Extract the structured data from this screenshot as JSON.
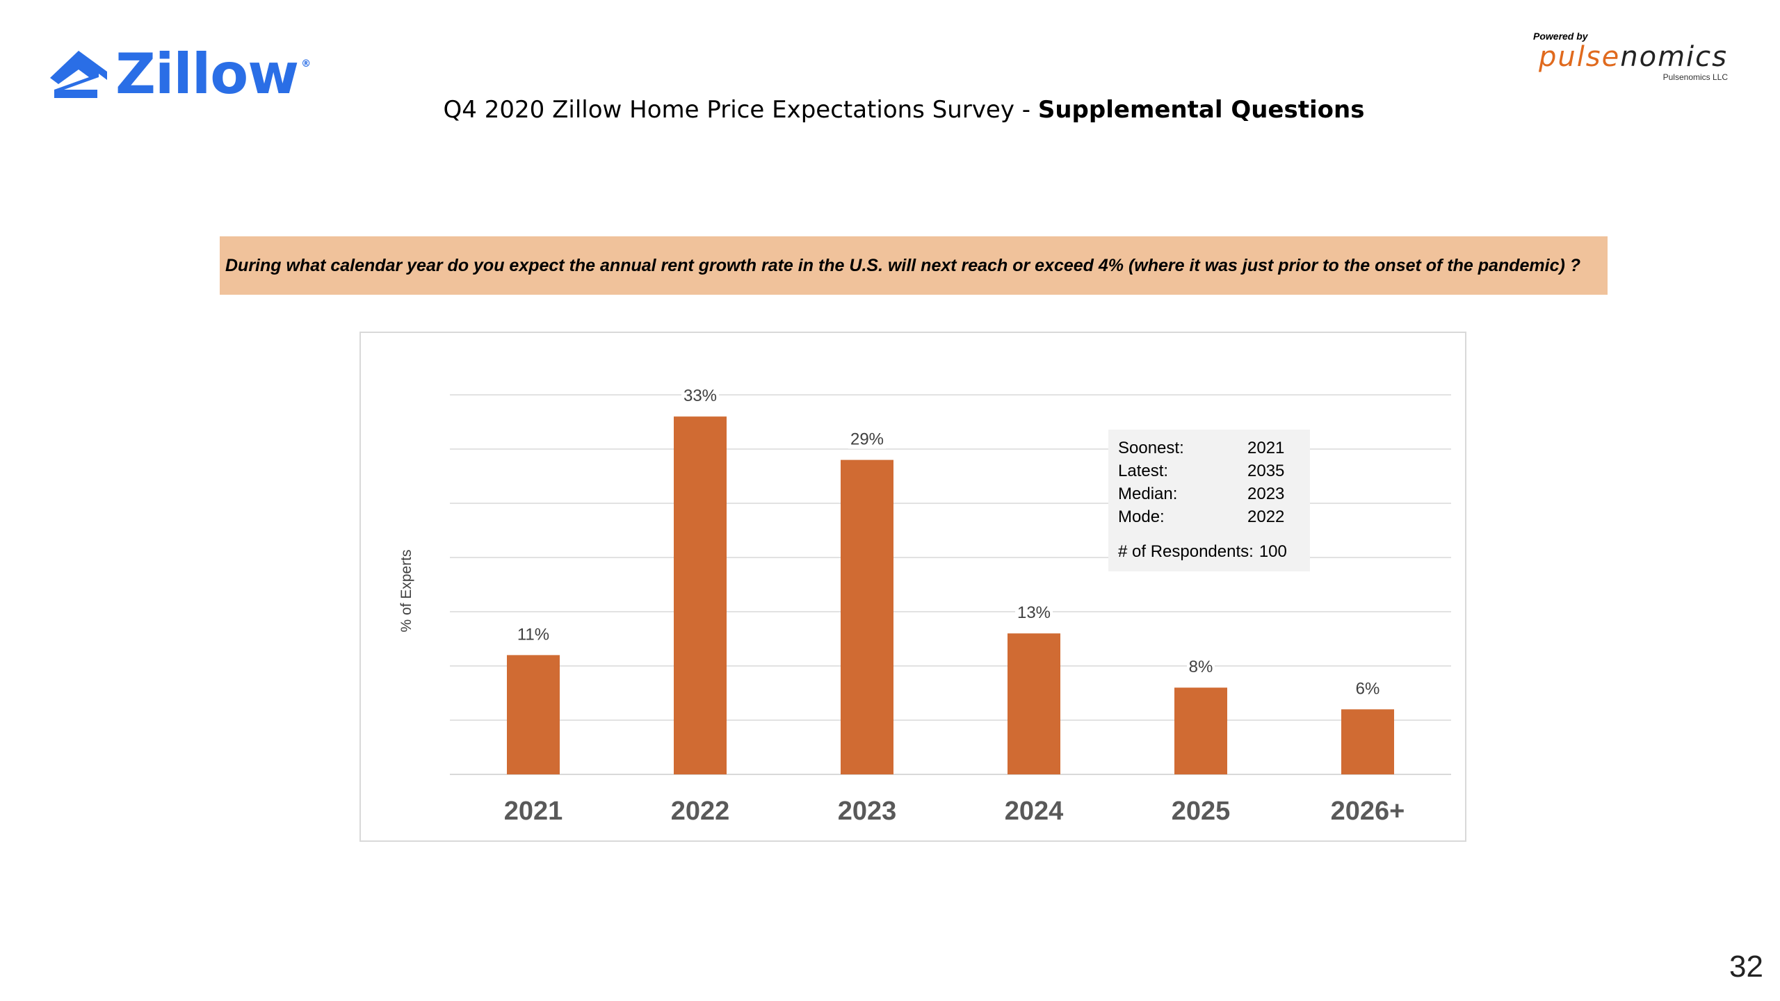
{
  "header": {
    "logo_text": "Zillow",
    "logo_reg": "®",
    "powered_by": "Powered by",
    "partner_name": "pulsenomics",
    "partner_llc": "Pulsenomics LLC",
    "title_regular": "Q4 2020 Zillow Home Price Expectations Survey - ",
    "title_bold": "Supplemental Questions"
  },
  "question": "During what calendar year do you expect the annual rent growth rate in the U.S. will next reach or exceed 4% (where it was just prior to the onset of the pandemic) ?",
  "stats": {
    "rows": [
      {
        "label": "Soonest:",
        "value": "2021"
      },
      {
        "label": "Latest:",
        "value": "2035"
      },
      {
        "label": "Median:",
        "value": "2023"
      },
      {
        "label": "Mode:",
        "value": "2022"
      }
    ],
    "respondents_label": "# of Respondents:",
    "respondents_value": "100"
  },
  "page_number": "32",
  "colors": {
    "brand": "#2a6ee6",
    "bar": "#d06b33",
    "question_bg": "#f0c29b",
    "grid": "#d9d9d9",
    "axis_labels": "#595959"
  },
  "chart_data": {
    "type": "bar",
    "categories": [
      "2021",
      "2022",
      "2023",
      "2024",
      "2025",
      "2026+"
    ],
    "values": [
      11,
      33,
      29,
      13,
      8,
      6
    ],
    "value_labels": [
      "11%",
      "33%",
      "29%",
      "13%",
      "8%",
      "6%"
    ],
    "title": "",
    "xlabel": "",
    "ylabel": "% of Experts",
    "ylim": [
      0,
      35
    ],
    "grid": true,
    "legend": "none"
  }
}
